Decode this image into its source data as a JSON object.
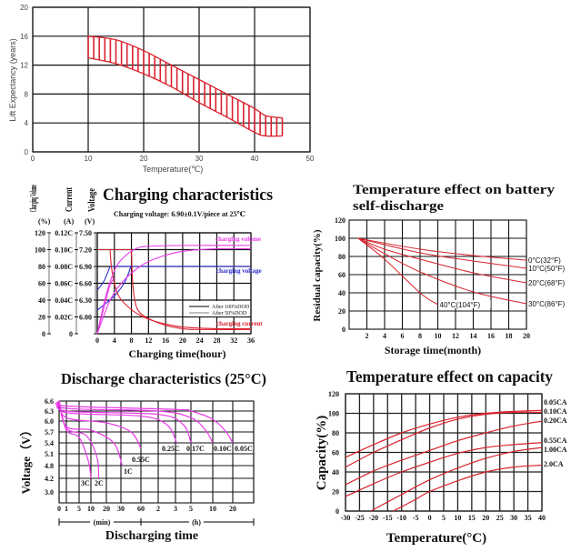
{
  "chart_data": [
    {
      "type": "area",
      "title": "",
      "xlabel": "Temperature(℃)",
      "ylabel": "Lift Expectancy  (years)",
      "xlim": [
        0,
        50
      ],
      "ylim": [
        0,
        20
      ],
      "xticks": [
        0,
        10,
        20,
        30,
        40,
        50
      ],
      "yticks": [
        0,
        4,
        8,
        12,
        16,
        20
      ],
      "grid": true,
      "color": "#d9232e",
      "band": {
        "upper": [
          [
            10,
            16
          ],
          [
            15,
            15.5
          ],
          [
            20,
            14
          ],
          [
            25,
            12
          ],
          [
            30,
            10
          ],
          [
            35,
            8
          ],
          [
            40,
            6
          ],
          [
            42,
            5
          ],
          [
            45,
            4.7
          ]
        ],
        "lower": [
          [
            10,
            13
          ],
          [
            15,
            12.2
          ],
          [
            20,
            10.8
          ],
          [
            25,
            9
          ],
          [
            30,
            6.8
          ],
          [
            35,
            4.8
          ],
          [
            40,
            2.7
          ],
          [
            42,
            2.2
          ],
          [
            45,
            2.2
          ]
        ]
      }
    },
    {
      "type": "line",
      "title": "Charging characteristics",
      "subtitle": "Charging voltage: 6.90±0.1V/piece at 25℃",
      "xlabel": "Charging time(hour)",
      "xlim": [
        0,
        36
      ],
      "xticks": [
        0,
        4,
        8,
        12,
        16,
        20,
        24,
        28,
        32,
        36
      ],
      "axes": [
        {
          "name": "Charging Volume",
          "unit": "(%)",
          "ticks": [
            "0",
            "20",
            "40",
            "60",
            "80",
            "100",
            "120"
          ]
        },
        {
          "name": "Current",
          "unit": "(A)",
          "ticks": [
            "0",
            "0.02C",
            "0.04C",
            "0.06C",
            "0.08C",
            "0.10C",
            "0.12C"
          ]
        },
        {
          "name": "Voltage",
          "unit": "(V)",
          "ticks": [
            "",
            "6.00",
            "6.30",
            "6.60",
            "6.90",
            "7.20",
            "7.50"
          ]
        }
      ],
      "ylim": [
        0,
        120
      ],
      "grid": true,
      "legend": [
        "After 100%DOD",
        "After 50%DOD"
      ],
      "labels": {
        "volume": "charging volume",
        "voltage": "charging voltage",
        "current": "charging current"
      },
      "colors": {
        "volume": "#e83be8",
        "voltage": "#2a2ad0",
        "current": "#d9232e"
      },
      "series": [
        {
          "kind": "voltage",
          "points": [
            [
              0,
              52
            ],
            [
              1.5,
              62
            ],
            [
              3,
              80
            ]
          ]
        },
        {
          "kind": "voltage",
          "points": [
            [
              0,
              28
            ],
            [
              4,
              45
            ],
            [
              6.5,
              62
            ],
            [
              8,
              82
            ]
          ]
        },
        {
          "kind": "voltage",
          "points": [
            [
              3,
              80
            ],
            [
              36,
              80
            ]
          ]
        },
        {
          "kind": "current",
          "points": [
            [
              0,
              100
            ],
            [
              8,
              100
            ]
          ]
        },
        {
          "kind": "current",
          "points": [
            [
              3,
              100
            ],
            [
              3.3,
              80
            ],
            [
              4,
              60
            ],
            [
              5,
              45
            ],
            [
              7,
              33
            ],
            [
              10,
              22
            ],
            [
              14,
              14
            ],
            [
              20,
              8
            ],
            [
              28,
              6
            ],
            [
              36,
              6
            ]
          ]
        },
        {
          "kind": "current",
          "points": [
            [
              8,
              100
            ],
            [
              8.3,
              60
            ],
            [
              9,
              35
            ],
            [
              10,
              25
            ],
            [
              12,
              18
            ],
            [
              16,
              10
            ],
            [
              20,
              6
            ],
            [
              24,
              5
            ],
            [
              36,
              5
            ]
          ]
        },
        {
          "kind": "volume",
          "points": [
            [
              0,
              0
            ],
            [
              2,
              45
            ],
            [
              4,
              75
            ],
            [
              6,
              90
            ],
            [
              9,
              101
            ],
            [
              12,
              104
            ],
            [
              20,
              105
            ],
            [
              36,
              105
            ]
          ]
        },
        {
          "kind": "volume",
          "points": [
            [
              0,
              0
            ],
            [
              3,
              40
            ],
            [
              6,
              62
            ],
            [
              10,
              80
            ],
            [
              14,
              90
            ],
            [
              20,
              98
            ],
            [
              28,
              101
            ],
            [
              36,
              101
            ]
          ]
        },
        {
          "kind": "volume",
          "points": [
            [
              0,
              0
            ],
            [
              1.5,
              30
            ],
            [
              3,
              58
            ],
            [
              4,
              66
            ]
          ]
        }
      ]
    },
    {
      "type": "line",
      "title": "Temperature effect on battery self-discharge",
      "title_lines": [
        "Temperature effect on battery",
        "self-discharge"
      ],
      "xlabel": "Storage time(month)",
      "ylabel": "Residual capacity(%)",
      "xlim": [
        0,
        20
      ],
      "ylim": [
        0,
        120
      ],
      "xticks": [
        2,
        4,
        6,
        8,
        10,
        12,
        14,
        16,
        18,
        20
      ],
      "yticks": [
        0,
        20,
        40,
        60,
        80,
        100,
        120
      ],
      "grid": true,
      "color": "#d9232e",
      "series": [
        {
          "name": "0°C(32°F)",
          "points": [
            [
              1,
              100
            ],
            [
              8,
              88
            ],
            [
              14,
              81
            ],
            [
              20,
              76
            ]
          ]
        },
        {
          "name": "10°C(50°F)",
          "points": [
            [
              1,
              100
            ],
            [
              8,
              84
            ],
            [
              14,
              75
            ],
            [
              20,
              67
            ]
          ]
        },
        {
          "name": "20°C(68°F)",
          "points": [
            [
              1,
              100
            ],
            [
              4,
              88
            ],
            [
              8,
              77
            ],
            [
              14,
              62
            ],
            [
              20,
              51
            ]
          ]
        },
        {
          "name": "30°C(86°F)",
          "points": [
            [
              1,
              100
            ],
            [
              4,
              83
            ],
            [
              8,
              63
            ],
            [
              14,
              41
            ],
            [
              20,
              28
            ]
          ]
        },
        {
          "name": "40°C(104°F)",
          "points": [
            [
              1,
              100
            ],
            [
              4,
              77
            ],
            [
              8,
              40
            ],
            [
              10,
              27
            ]
          ]
        }
      ]
    },
    {
      "type": "line",
      "title": "Discharge characteristics (25°C)",
      "xlabel": "Discharging time",
      "ylabel": "Voltage（V）",
      "xticks_min": [
        0,
        1,
        5,
        10,
        20,
        30,
        60
      ],
      "xticks_h": [
        2,
        3,
        5,
        10,
        20
      ],
      "xunit_min": "(min)",
      "xunit_h": "(h)",
      "yticks": [
        3.0,
        4.2,
        4.8,
        5.1,
        5.4,
        5.7,
        6.0,
        6.3,
        6.6
      ],
      "ytick_labels": [
        "3.0",
        "4.2",
        "4.8",
        "5.1",
        "5.4",
        "5.7",
        "6.0",
        "6.3",
        "6.6"
      ],
      "grid": true,
      "color": "#e83be8",
      "series": [
        {
          "name": "0.05C",
          "points_min_v": [
            [
              0,
              6.6
            ],
            [
              1,
              6.45
            ],
            [
              180,
              6.35
            ],
            [
              300,
              6.3
            ],
            [
              600,
              6.05
            ],
            [
              1000,
              5.7
            ],
            [
              1200,
              5.4
            ]
          ]
        },
        {
          "name": "0.10C",
          "points_min_v": [
            [
              0,
              6.6
            ],
            [
              1,
              6.38
            ],
            [
              120,
              6.3
            ],
            [
              300,
              6.1
            ],
            [
              500,
              5.75
            ],
            [
              600,
              5.4
            ]
          ]
        },
        {
          "name": "0.17C",
          "points_min_v": [
            [
              0,
              6.6
            ],
            [
              1,
              6.3
            ],
            [
              120,
              6.2
            ],
            [
              240,
              5.9
            ],
            [
              300,
              5.4
            ]
          ]
        },
        {
          "name": "0.25C",
          "points_min_v": [
            [
              0,
              6.6
            ],
            [
              1,
              6.25
            ],
            [
              60,
              6.15
            ],
            [
              150,
              5.9
            ],
            [
              190,
              5.4
            ]
          ]
        },
        {
          "name": "0.55C",
          "points_min_v": [
            [
              0,
              6.6
            ],
            [
              1,
              6.1
            ],
            [
              20,
              5.95
            ],
            [
              45,
              5.7
            ],
            [
              60,
              5.25
            ]
          ]
        },
        {
          "name": "1C",
          "points_min_v": [
            [
              0,
              6.6
            ],
            [
              1,
              5.85
            ],
            [
              10,
              5.75
            ],
            [
              25,
              5.4
            ],
            [
              32,
              4.8
            ]
          ]
        },
        {
          "name": "2C",
          "points_min_v": [
            [
              0,
              6.6
            ],
            [
              1,
              5.8
            ],
            [
              8,
              5.6
            ],
            [
              14,
              5.0
            ],
            [
              15,
              4.2
            ]
          ]
        },
        {
          "name": "3C",
          "points_min_v": [
            [
              0,
              6.6
            ],
            [
              1,
              5.75
            ],
            [
              5,
              5.55
            ],
            [
              9,
              4.9
            ],
            [
              10,
              4.2
            ]
          ]
        }
      ]
    },
    {
      "type": "line",
      "title": "Temperature effect on capacity",
      "xlabel": "Temperature(°C)",
      "ylabel": "Capacity(%)",
      "xlim": [
        -30,
        40
      ],
      "ylim": [
        0,
        120
      ],
      "xticks": [
        -30,
        -25,
        -20,
        -15,
        -10,
        -5,
        0,
        5,
        10,
        15,
        20,
        25,
        30,
        35,
        40
      ],
      "yticks": [
        0,
        20,
        40,
        60,
        80,
        100,
        120
      ],
      "grid": true,
      "color": "#d9232e",
      "series": [
        {
          "name": "0.05CA",
          "points": [
            [
              -30,
              55
            ],
            [
              -20,
              68
            ],
            [
              -10,
              80
            ],
            [
              0,
              89
            ],
            [
              10,
              96
            ],
            [
              20,
              100
            ],
            [
              30,
              102
            ],
            [
              40,
              103
            ]
          ]
        },
        {
          "name": "0.10CA",
          "points": [
            [
              -30,
              45
            ],
            [
              -20,
              60
            ],
            [
              -10,
              73
            ],
            [
              0,
              85
            ],
            [
              10,
              94
            ],
            [
              20,
              99
            ],
            [
              30,
              101
            ],
            [
              40,
              101
            ]
          ]
        },
        {
          "name": "0.20CA",
          "points": [
            [
              -30,
              27
            ],
            [
              -20,
              41
            ],
            [
              -10,
              52
            ],
            [
              0,
              62
            ],
            [
              10,
              72
            ],
            [
              20,
              80
            ],
            [
              30,
              87
            ],
            [
              40,
              92
            ]
          ]
        },
        {
          "name": "0.55CA",
          "points": [
            [
              -30,
              15
            ],
            [
              -20,
              28
            ],
            [
              -10,
              40
            ],
            [
              0,
              50
            ],
            [
              10,
              59
            ],
            [
              20,
              65
            ],
            [
              30,
              68
            ],
            [
              40,
              70
            ]
          ]
        },
        {
          "name": "1.00CA",
          "points": [
            [
              -21,
              0
            ],
            [
              -10,
              17
            ],
            [
              0,
              32
            ],
            [
              10,
              44
            ],
            [
              20,
              54
            ],
            [
              30,
              61
            ],
            [
              40,
              65
            ]
          ]
        },
        {
          "name": "2.0CA",
          "points": [
            [
              -13,
              0
            ],
            [
              -5,
              12
            ],
            [
              0,
              20
            ],
            [
              10,
              31
            ],
            [
              20,
              40
            ],
            [
              30,
              45
            ],
            [
              40,
              47
            ]
          ]
        }
      ]
    }
  ]
}
